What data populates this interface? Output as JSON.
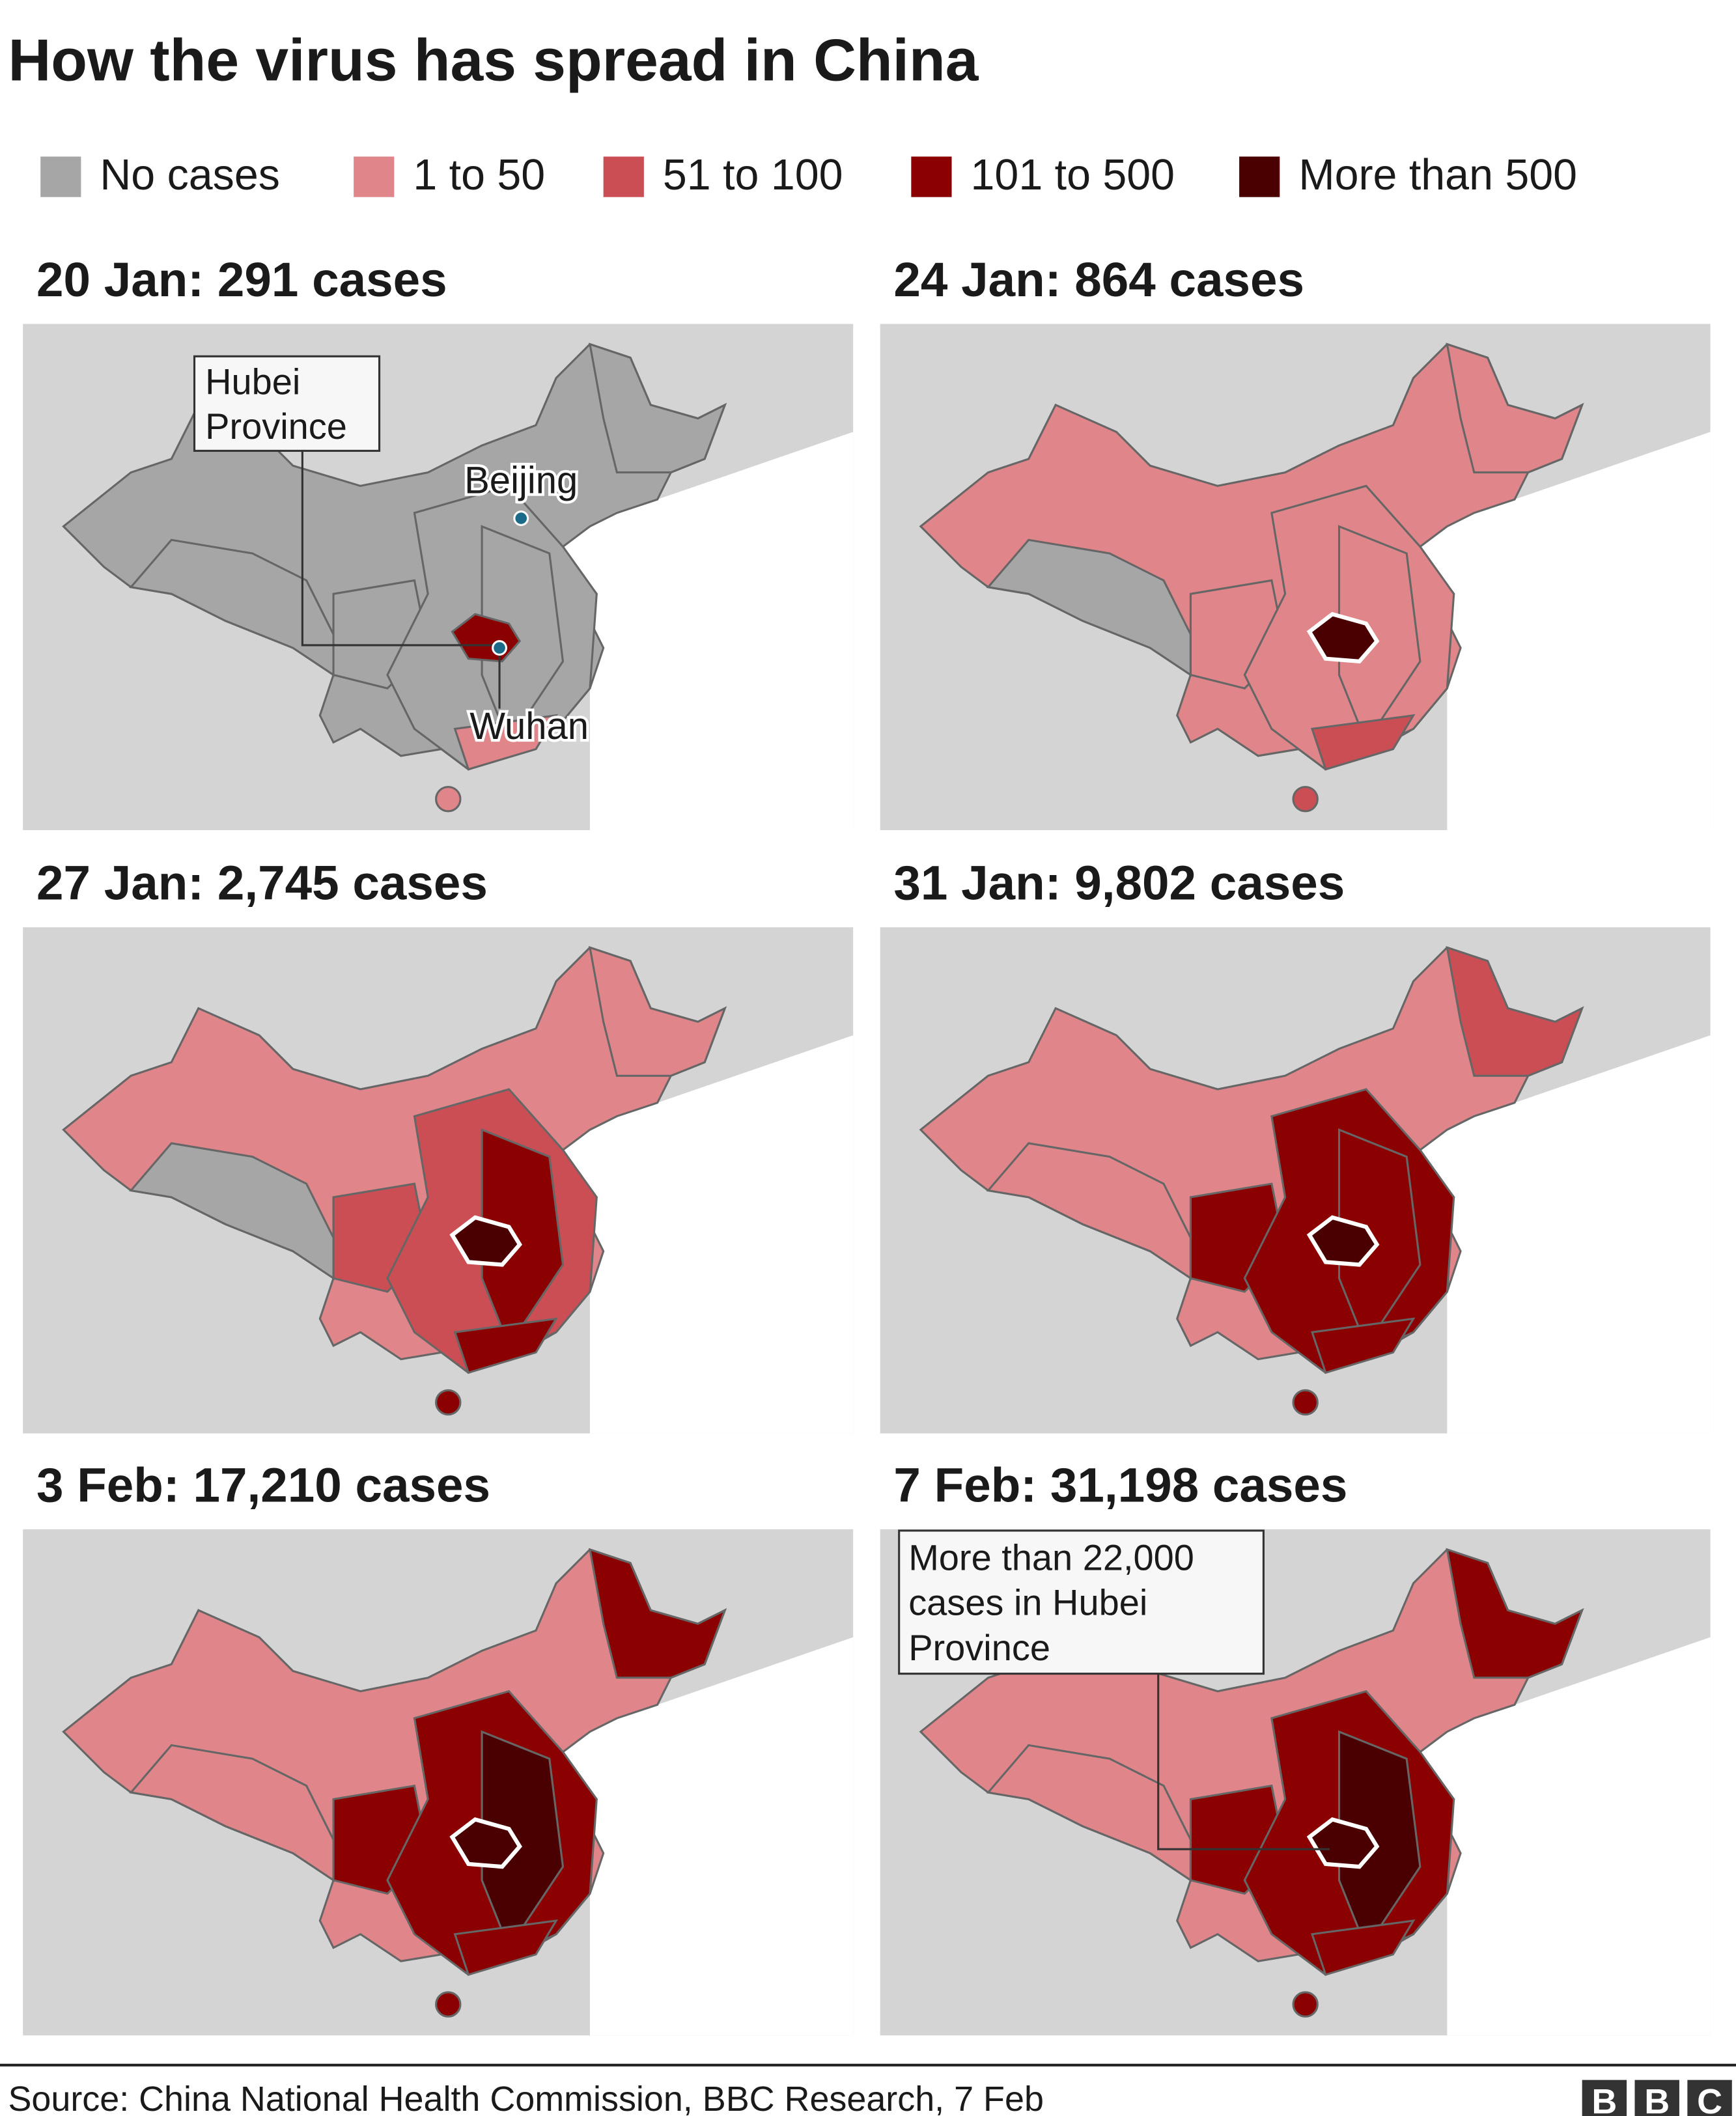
{
  "title": "How the virus has spread in China",
  "legend": [
    {
      "label": "No cases",
      "color": "#a6a6a6"
    },
    {
      "label": "1 to 50",
      "color": "#e0868a"
    },
    {
      "label": "51 to 100",
      "color": "#cc4e55"
    },
    {
      "label": "101 to 500",
      "color": "#8b0000"
    },
    {
      "label": "More than 500",
      "color": "#4a0000"
    }
  ],
  "panels": [
    {
      "title": "20 Jan: 291 cases"
    },
    {
      "title": "24 Jan: 864 cases"
    },
    {
      "title": "27 Jan: 2,745 cases"
    },
    {
      "title": "31 Jan: 9,802 cases"
    },
    {
      "title": "3 Feb: 17,210 cases"
    },
    {
      "title": "7 Feb: 31,198 cases"
    }
  ],
  "annotations": {
    "hubei_box": [
      "Hubei",
      "Province"
    ],
    "beijing": "Beijing",
    "wuhan": "Wuhan",
    "hubei_cases_box": [
      "More than 22,000",
      "cases in Hubei",
      "Province"
    ]
  },
  "source": "Source: China National Health Commission, BBC Research, 7 Feb",
  "logo": [
    "B",
    "B",
    "C"
  ]
}
